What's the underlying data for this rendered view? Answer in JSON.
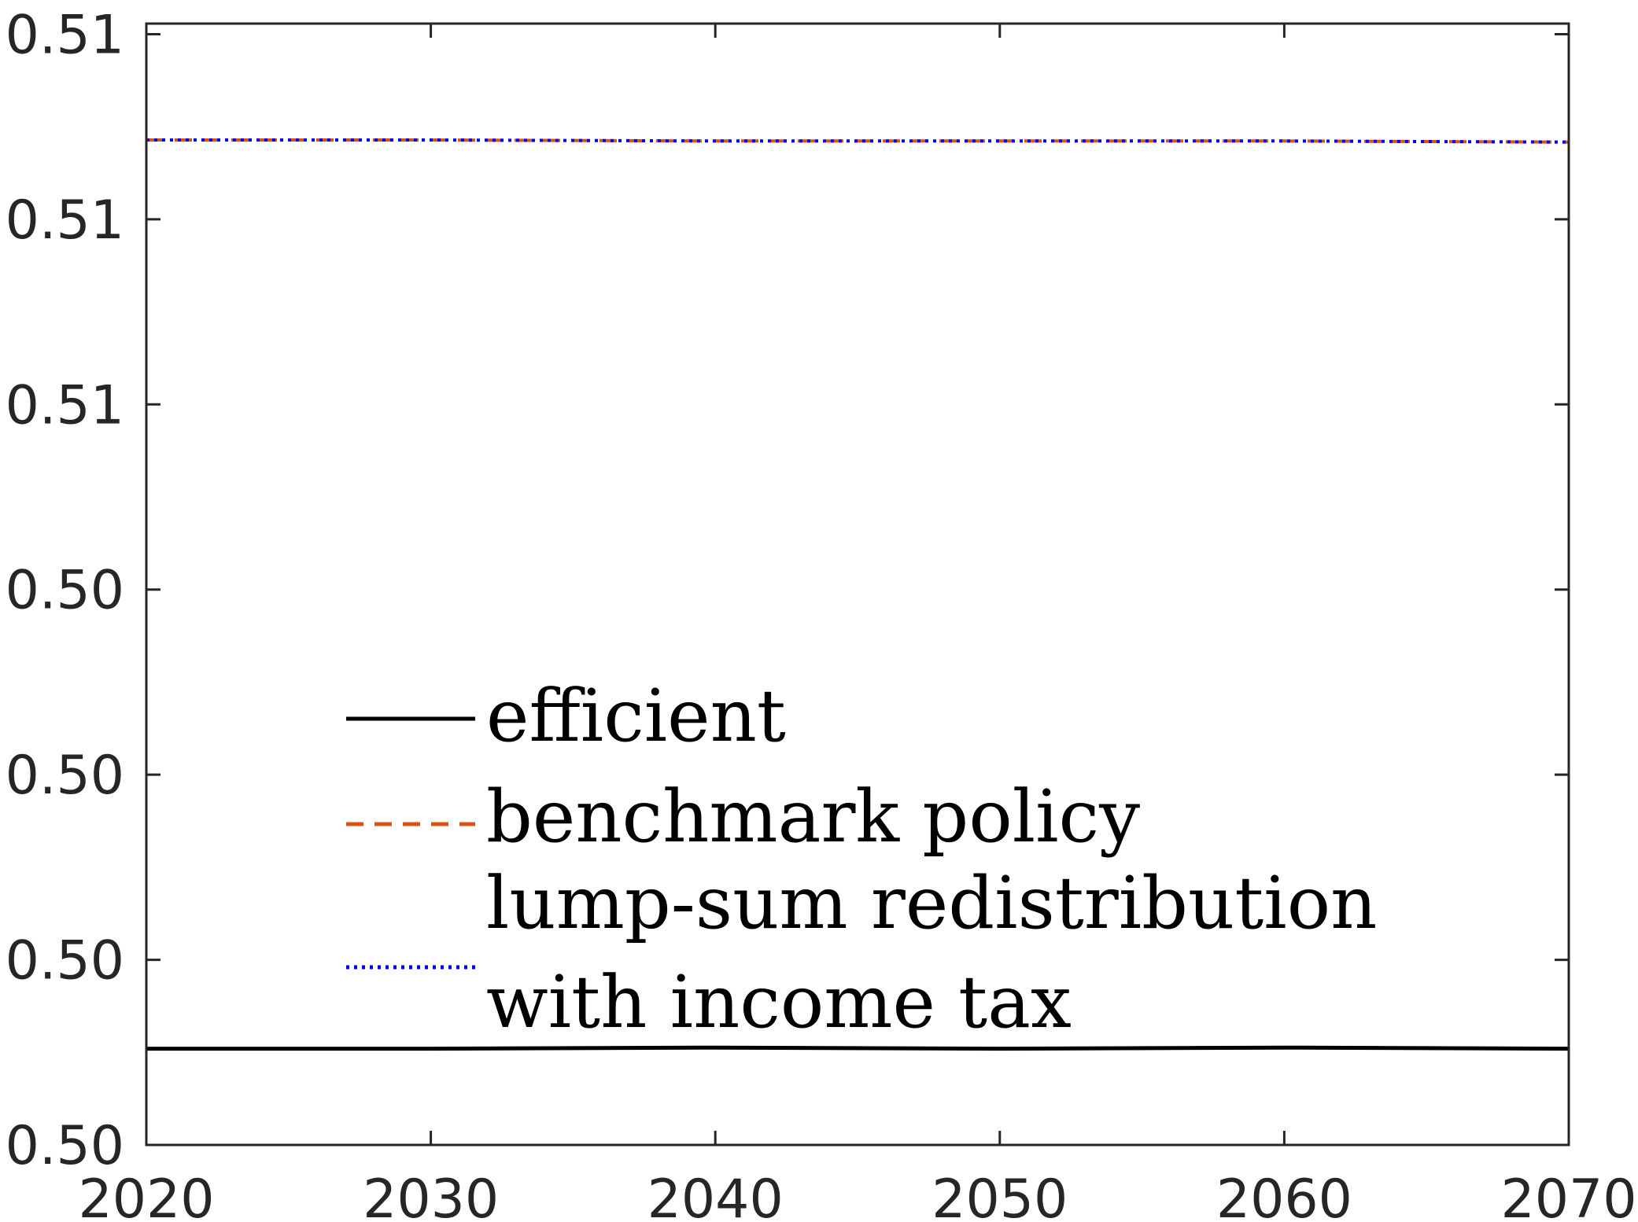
{
  "chart_data": {
    "type": "line",
    "title": "",
    "xlabel": "",
    "ylabel": "",
    "xlim": [
      2020,
      2070
    ],
    "ylim": [
      0.5,
      0.5106
    ],
    "x_ticks": [
      2020,
      2030,
      2040,
      2050,
      2060,
      2070
    ],
    "x_tick_labels": [
      "2020",
      "2030",
      "2040",
      "2050",
      "2060",
      "2070"
    ],
    "y_ticks": [
      0.5,
      0.50175,
      0.5035,
      0.50525,
      0.507,
      0.50875,
      0.5105
    ],
    "y_tick_labels": [
      "0.50",
      "0.50",
      "0.50",
      "0.50",
      "0.51",
      "0.51",
      "0.51"
    ],
    "grid": false,
    "legend_position": "lower-center",
    "series": [
      {
        "name": "efficient",
        "color": "#000000",
        "style": "solid",
        "x": [
          2020,
          2030,
          2040,
          2050,
          2060,
          2070
        ],
        "y": [
          0.50091,
          0.50091,
          0.50092,
          0.50091,
          0.50092,
          0.50091
        ]
      },
      {
        "name": "benchmark policy",
        "color": "#D95319",
        "style": "dashed",
        "x": [
          2020,
          2030,
          2040,
          2050,
          2060,
          2070
        ],
        "y": [
          0.5095,
          0.5095,
          0.50949,
          0.50949,
          0.50949,
          0.50948
        ]
      },
      {
        "name": "lump-sum redistribution with income tax",
        "color": "#0000FF",
        "style": "dotted",
        "x": [
          2020,
          2030,
          2040,
          2050,
          2060,
          2070
        ],
        "y": [
          0.5095,
          0.5095,
          0.50949,
          0.50949,
          0.50949,
          0.50948
        ]
      }
    ],
    "legend": [
      {
        "lines": [
          "efficient"
        ]
      },
      {
        "lines": [
          "benchmark policy"
        ]
      },
      {
        "lines": [
          "lump-sum redistribution",
          "with income tax"
        ]
      }
    ]
  }
}
